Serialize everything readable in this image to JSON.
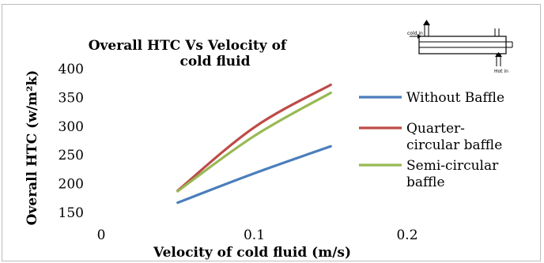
{
  "chart_data": {
    "type": "line",
    "title_lines": [
      "Overall HTC Vs Velocity of",
      "cold fluid"
    ],
    "xlabel": "Velocity of cold fluid (m/s)",
    "ylabel": "Overall HTC (w/m²k)",
    "xlim": [
      0,
      0.2
    ],
    "ylim": [
      150,
      400
    ],
    "x_ticks": [
      "0",
      "0.1",
      "0.2"
    ],
    "y_ticks": [
      "150",
      "200",
      "250",
      "300",
      "350",
      "400"
    ],
    "x_tick_values": [
      0,
      0.1,
      0.2
    ],
    "y_tick_values": [
      150,
      200,
      250,
      300,
      350,
      400
    ],
    "grid": false,
    "legend_position": "right",
    "series": [
      {
        "name": "Without Baffle",
        "color": "#4a7ebb",
        "x": [
          0.05,
          0.1,
          0.15
        ],
        "y": [
          167,
          218,
          265
        ]
      },
      {
        "name": "Quarter-circular baffle",
        "color": "#be4b48",
        "x": [
          0.05,
          0.1,
          0.15
        ],
        "y": [
          188,
          298,
          372
        ]
      },
      {
        "name": "Semi-circular baffle",
        "color": "#98b954",
        "x": [
          0.05,
          0.1,
          0.15
        ],
        "y": [
          187,
          283,
          358
        ]
      }
    ],
    "legend": [
      {
        "lines": [
          "Without Baffle"
        ]
      },
      {
        "lines": [
          "Quarter-",
          "circular baffle"
        ]
      },
      {
        "lines": [
          "Semi-circular",
          "baffle"
        ]
      }
    ],
    "inset_diagram": {
      "labels": [
        "cold in",
        "Hot in"
      ]
    }
  }
}
